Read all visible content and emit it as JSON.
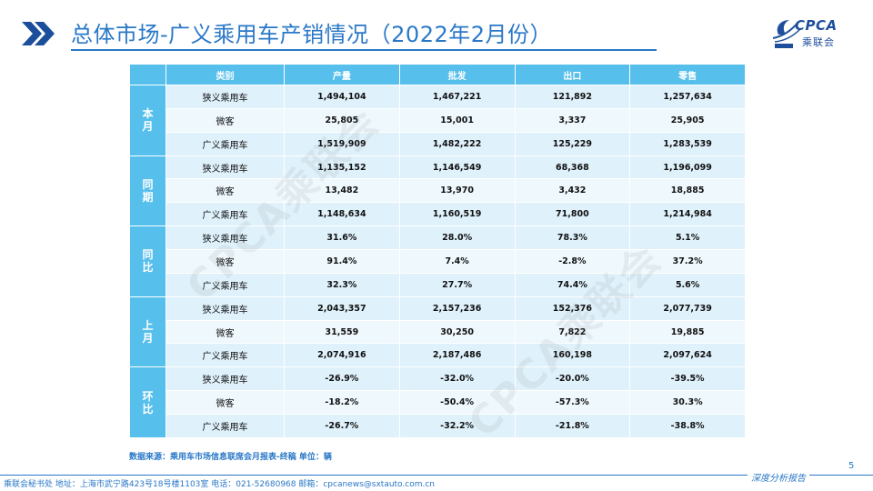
{
  "title": "总体市场-广义乘用车产销情况（2022年2月份）",
  "logo": {
    "text": "CPCA",
    "cn": "乘联会"
  },
  "watermark": "CPCA乘联会",
  "table": {
    "headers": [
      "类别",
      "产量",
      "批发",
      "出口",
      "零售"
    ],
    "groups": [
      {
        "label": "本月",
        "rows": [
          {
            "category": "狭义乘用车",
            "values": [
              "1,494,104",
              "1,467,221",
              "121,892",
              "1,257,634"
            ]
          },
          {
            "category": "微客",
            "values": [
              "25,805",
              "15,001",
              "3,337",
              "25,905"
            ]
          },
          {
            "category": "广义乘用车",
            "values": [
              "1,519,909",
              "1,482,222",
              "125,229",
              "1,283,539"
            ]
          }
        ]
      },
      {
        "label": "同期",
        "rows": [
          {
            "category": "狭义乘用车",
            "values": [
              "1,135,152",
              "1,146,549",
              "68,368",
              "1,196,099"
            ]
          },
          {
            "category": "微客",
            "values": [
              "13,482",
              "13,970",
              "3,432",
              "18,885"
            ]
          },
          {
            "category": "广义乘用车",
            "values": [
              "1,148,634",
              "1,160,519",
              "71,800",
              "1,214,984"
            ]
          }
        ]
      },
      {
        "label": "同比",
        "rows": [
          {
            "category": "狭义乘用车",
            "values": [
              "31.6%",
              "28.0%",
              "78.3%",
              "5.1%"
            ]
          },
          {
            "category": "微客",
            "values": [
              "91.4%",
              "7.4%",
              "-2.8%",
              "37.2%"
            ]
          },
          {
            "category": "广义乘用车",
            "values": [
              "32.3%",
              "27.7%",
              "74.4%",
              "5.6%"
            ]
          }
        ]
      },
      {
        "label": "上月",
        "rows": [
          {
            "category": "狭义乘用车",
            "values": [
              "2,043,357",
              "2,157,236",
              "152,376",
              "2,077,739"
            ]
          },
          {
            "category": "微客",
            "values": [
              "31,559",
              "30,250",
              "7,822",
              "19,885"
            ]
          },
          {
            "category": "广义乘用车",
            "values": [
              "2,074,916",
              "2,187,486",
              "160,198",
              "2,097,624"
            ]
          }
        ]
      },
      {
        "label": "环比",
        "rows": [
          {
            "category": "狭义乘用车",
            "values": [
              "-26.9%",
              "-32.0%",
              "-20.0%",
              "-39.5%"
            ]
          },
          {
            "category": "微客",
            "values": [
              "-18.2%",
              "-50.4%",
              "-57.3%",
              "30.3%"
            ]
          },
          {
            "category": "广义乘用车",
            "values": [
              "-26.7%",
              "-32.2%",
              "-21.8%",
              "-38.8%"
            ]
          }
        ]
      }
    ]
  },
  "source": "数据来源：乘用车市场信息联席会月报表-终稿     单位：辆",
  "page_number": "5",
  "tagline": "深度分析报告",
  "footer": "乘联会秘书处   地址：上海市武宁路423号18号楼1103室   电话：021-52680968   邮箱：cpcanews@sxtauto.com.cn",
  "colors": {
    "accent": "#2a78c8",
    "header": "#56bfeb",
    "row_light": "#eef8fd",
    "row_dark": "#dff1fb"
  }
}
